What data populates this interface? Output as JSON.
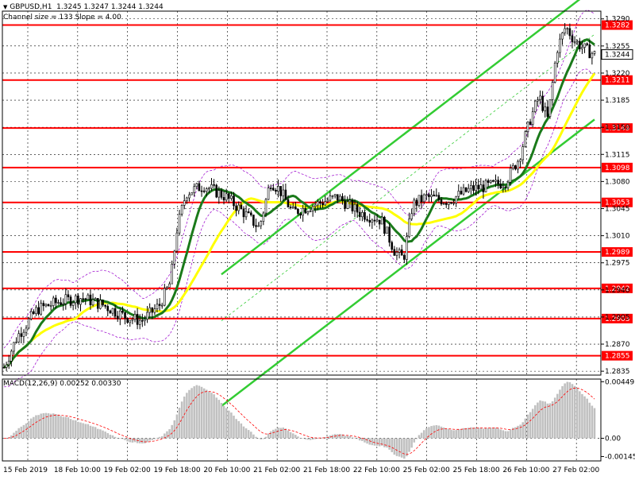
{
  "chart_data": [
    {
      "type": "candlestick",
      "title": "GBPUSD,H1",
      "ohlc_text": "1.3245 1.3247 1.3244 1.3244",
      "indicator_text": "Channel size = 133 Slope = 4.00",
      "x_tick_labels": [
        "15 Feb 2019",
        "18 Feb 10:00",
        "19 Feb 02:00",
        "19 Feb 18:00",
        "20 Feb 10:00",
        "21 Feb 02:00",
        "21 Feb 18:00",
        "22 Feb 10:00",
        "25 Feb 02:00",
        "25 Feb 18:00",
        "26 Feb 10:00",
        "27 Feb 02:00"
      ],
      "y_tick_labels": [
        "1.3290",
        "1.3255",
        "1.3220",
        "1.3185",
        "1.3150",
        "1.3115",
        "1.3080",
        "1.3045",
        "1.3010",
        "1.2975",
        "1.2940",
        "1.2905",
        "1.2870",
        "1.2835"
      ],
      "ylim": [
        1.283,
        1.33
      ],
      "current_price": "1.3244",
      "levels": [
        "1.3282",
        "1.3211",
        "1.3149",
        "1.3098",
        "1.3053",
        "1.2989",
        "1.2942",
        "1.2903",
        "1.2855"
      ],
      "grid": true,
      "level_color": "#ff0000",
      "channel_color": "#33cc33",
      "ma_fast_color": "#1a7a1a",
      "ma_slow_color": "#ffff00",
      "envelope_color": "#9900cc"
    },
    {
      "type": "bar",
      "title": "MACD(12,26,9) 0.00252 0.00330",
      "y_tick_labels": [
        "0.00449",
        "0.00",
        "-0.00145"
      ],
      "ylim": [
        -0.0018,
        0.0047
      ],
      "bar_color": "#c0c0c0",
      "signal_color": "#ff0000"
    }
  ]
}
